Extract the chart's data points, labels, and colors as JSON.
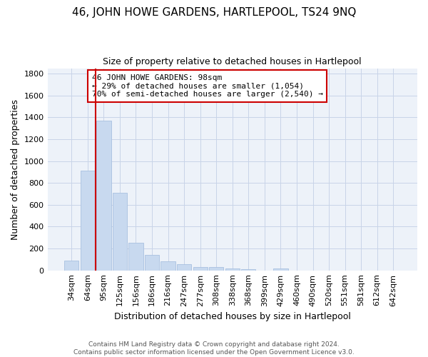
{
  "title": "46, JOHN HOWE GARDENS, HARTLEPOOL, TS24 9NQ",
  "subtitle": "Size of property relative to detached houses in Hartlepool",
  "xlabel": "Distribution of detached houses by size in Hartlepool",
  "ylabel": "Number of detached properties",
  "footer_line1": "Contains HM Land Registry data © Crown copyright and database right 2024.",
  "footer_line2": "Contains public sector information licensed under the Open Government Licence v3.0.",
  "categories": [
    "34sqm",
    "64sqm",
    "95sqm",
    "125sqm",
    "156sqm",
    "186sqm",
    "216sqm",
    "247sqm",
    "277sqm",
    "308sqm",
    "338sqm",
    "368sqm",
    "399sqm",
    "429sqm",
    "460sqm",
    "490sqm",
    "520sqm",
    "551sqm",
    "581sqm",
    "612sqm",
    "642sqm"
  ],
  "values": [
    90,
    910,
    1370,
    710,
    250,
    140,
    85,
    55,
    30,
    30,
    18,
    12,
    0,
    20,
    0,
    0,
    0,
    0,
    0,
    0,
    0
  ],
  "bar_color": "#c8d9ef",
  "bar_edge_color": "#a8c0e0",
  "ylim": [
    0,
    1850
  ],
  "yticks": [
    0,
    200,
    400,
    600,
    800,
    1000,
    1200,
    1400,
    1600,
    1800
  ],
  "red_line_x": 1.5,
  "red_line_color": "#cc0000",
  "annotation_text_line1": "46 JOHN HOWE GARDENS: 98sqm",
  "annotation_text_line2": "← 29% of detached houses are smaller (1,054)",
  "annotation_text_line3": "70% of semi-detached houses are larger (2,540) →",
  "annotation_box_color": "#cc0000",
  "grid_color": "#c8d4e8",
  "background_color": "#edf2f9",
  "title_fontsize": 11,
  "subtitle_fontsize": 9,
  "ylabel_fontsize": 9,
  "xlabel_fontsize": 9,
  "tick_fontsize": 8,
  "ann_fontsize": 8
}
